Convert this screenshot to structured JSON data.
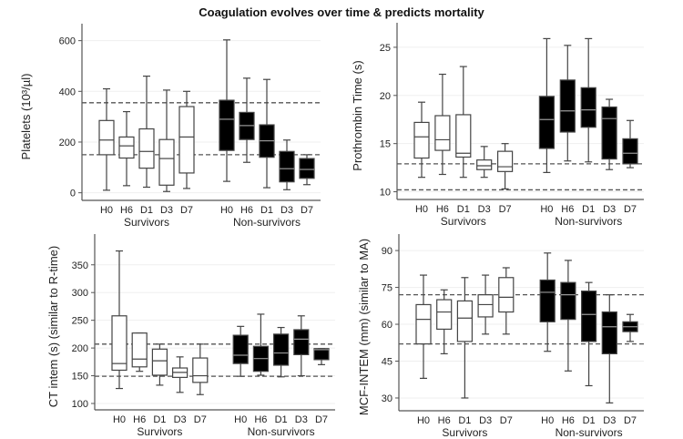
{
  "chart_data": [
    {
      "type": "box",
      "title": "Coagulation evolves over time & predicts mortality",
      "ylabel": "Platelets (10³/µl)",
      "ylim": [
        -30,
        631
      ],
      "yticks": [
        0,
        200,
        400,
        600
      ],
      "groups": [
        "Survivors",
        "Non-survivors"
      ],
      "categories": [
        "H0",
        "H6",
        "D1",
        "D3",
        "D7"
      ],
      "reference_lines": [
        355,
        150
      ],
      "grid": true,
      "series": [
        {
          "group": "Survivors",
          "fill": "#ffffff",
          "boxes": [
            [
              10,
              150,
              208,
              285,
              410
            ],
            [
              28,
              137,
              185,
              220,
              320
            ],
            [
              22,
              97,
              163,
              252,
              460
            ],
            [
              5,
              30,
              135,
              210,
              405
            ],
            [
              17,
              78,
              220,
              340,
              400
            ]
          ]
        },
        {
          "group": "Non-survivors",
          "fill": "#000000",
          "boxes": [
            [
              45,
              167,
              290,
              365,
              603
            ],
            [
              120,
              210,
              265,
              317,
              452
            ],
            [
              20,
              140,
              205,
              268,
              447
            ],
            [
              12,
              43,
              95,
              163,
              208
            ],
            [
              32,
              57,
              92,
              135,
              150
            ]
          ]
        }
      ]
    },
    {
      "type": "box",
      "ylabel": "Prothrombin Time (s)",
      "ylim": [
        9.2,
        26.6
      ],
      "yticks": [
        10,
        15,
        20,
        25
      ],
      "groups": [
        "Survivors",
        "Non-survivors"
      ],
      "categories": [
        "H0",
        "H6",
        "D1",
        "D3",
        "D7"
      ],
      "reference_lines": [
        12.9,
        10.2
      ],
      "grid": true,
      "series": [
        {
          "group": "Survivors",
          "fill": "#ffffff",
          "boxes": [
            [
              11.5,
              13.5,
              15.7,
              17.2,
              19.3
            ],
            [
              11.8,
              14.3,
              15.4,
              17.9,
              22.2
            ],
            [
              11.5,
              13.6,
              14.0,
              18.0,
              23.0
            ],
            [
              11.5,
              12.3,
              12.7,
              13.3,
              14.7
            ],
            [
              10.3,
              12.1,
              12.6,
              14.2,
              15.0
            ]
          ]
        },
        {
          "group": "Non-survivors",
          "fill": "#000000",
          "boxes": [
            [
              12.0,
              14.5,
              17.5,
              19.9,
              25.9
            ],
            [
              13.2,
              16.2,
              18.4,
              21.6,
              25.2
            ],
            [
              13.1,
              16.7,
              18.5,
              20.8,
              25.9
            ],
            [
              12.3,
              13.4,
              17.6,
              18.8,
              19.6
            ],
            [
              12.5,
              12.9,
              14.0,
              15.5,
              17.4
            ]
          ]
        }
      ]
    },
    {
      "type": "box",
      "ylabel": "CT intem (s) (similar to R-time)",
      "ylim": [
        88.5,
        389
      ],
      "yticks": [
        100,
        150,
        200,
        250,
        300,
        350
      ],
      "groups": [
        "Survivors",
        "Non-survivors"
      ],
      "categories": [
        "H0",
        "H6",
        "D1",
        "D3",
        "D7"
      ],
      "reference_lines": [
        207,
        149
      ],
      "grid": true,
      "series": [
        {
          "group": "Survivors",
          "fill": "#ffffff",
          "boxes": [
            [
              127,
              160,
              172,
              258,
              375
            ],
            [
              158,
              166,
              180,
              227,
              227
            ],
            [
              133,
              151,
              177,
              198,
              207
            ],
            [
              120,
              147,
              156,
              164,
              184
            ],
            [
              116,
              138,
              150,
              182,
              207
            ]
          ]
        },
        {
          "group": "Non-survivors",
          "fill": "#000000",
          "boxes": [
            [
              149,
              172,
              187,
              223,
              239
            ],
            [
              151,
              158,
              181,
              203,
              261
            ],
            [
              148,
              169,
              191,
              225,
              237
            ],
            [
              150,
              188,
              216,
              233,
              258
            ],
            [
              170,
              179,
              197,
              199,
              199
            ]
          ]
        }
      ]
    },
    {
      "type": "box",
      "ylabel": "MCF-INTEM (mm) (similar to MA)",
      "ylim": [
        24.8,
        93
      ],
      "yticks": [
        30,
        45,
        60,
        75,
        90
      ],
      "groups": [
        "Survivors",
        "Non-survivors"
      ],
      "categories": [
        "H0",
        "H6",
        "D1",
        "D3",
        "D7"
      ],
      "reference_lines": [
        72,
        52
      ],
      "grid": true,
      "series": [
        {
          "group": "Survivors",
          "fill": "#ffffff",
          "boxes": [
            [
              38,
              52,
              62,
              68,
              80
            ],
            [
              48,
              58,
              65,
              70,
              74
            ],
            [
              30,
              53,
              62.5,
              69.5,
              79
            ],
            [
              56,
              63,
              68,
              72,
              80
            ],
            [
              56,
              65,
              71,
              79,
              83
            ]
          ]
        },
        {
          "group": "Non-survivors",
          "fill": "#000000",
          "boxes": [
            [
              49,
              61,
              73,
              78,
              89
            ],
            [
              41,
              62,
              72,
              77,
              86
            ],
            [
              35,
              53,
              64,
              73.5,
              77
            ],
            [
              28,
              48,
              59,
              65,
              72
            ],
            [
              53,
              57,
              59,
              61,
              64
            ]
          ]
        }
      ]
    }
  ]
}
